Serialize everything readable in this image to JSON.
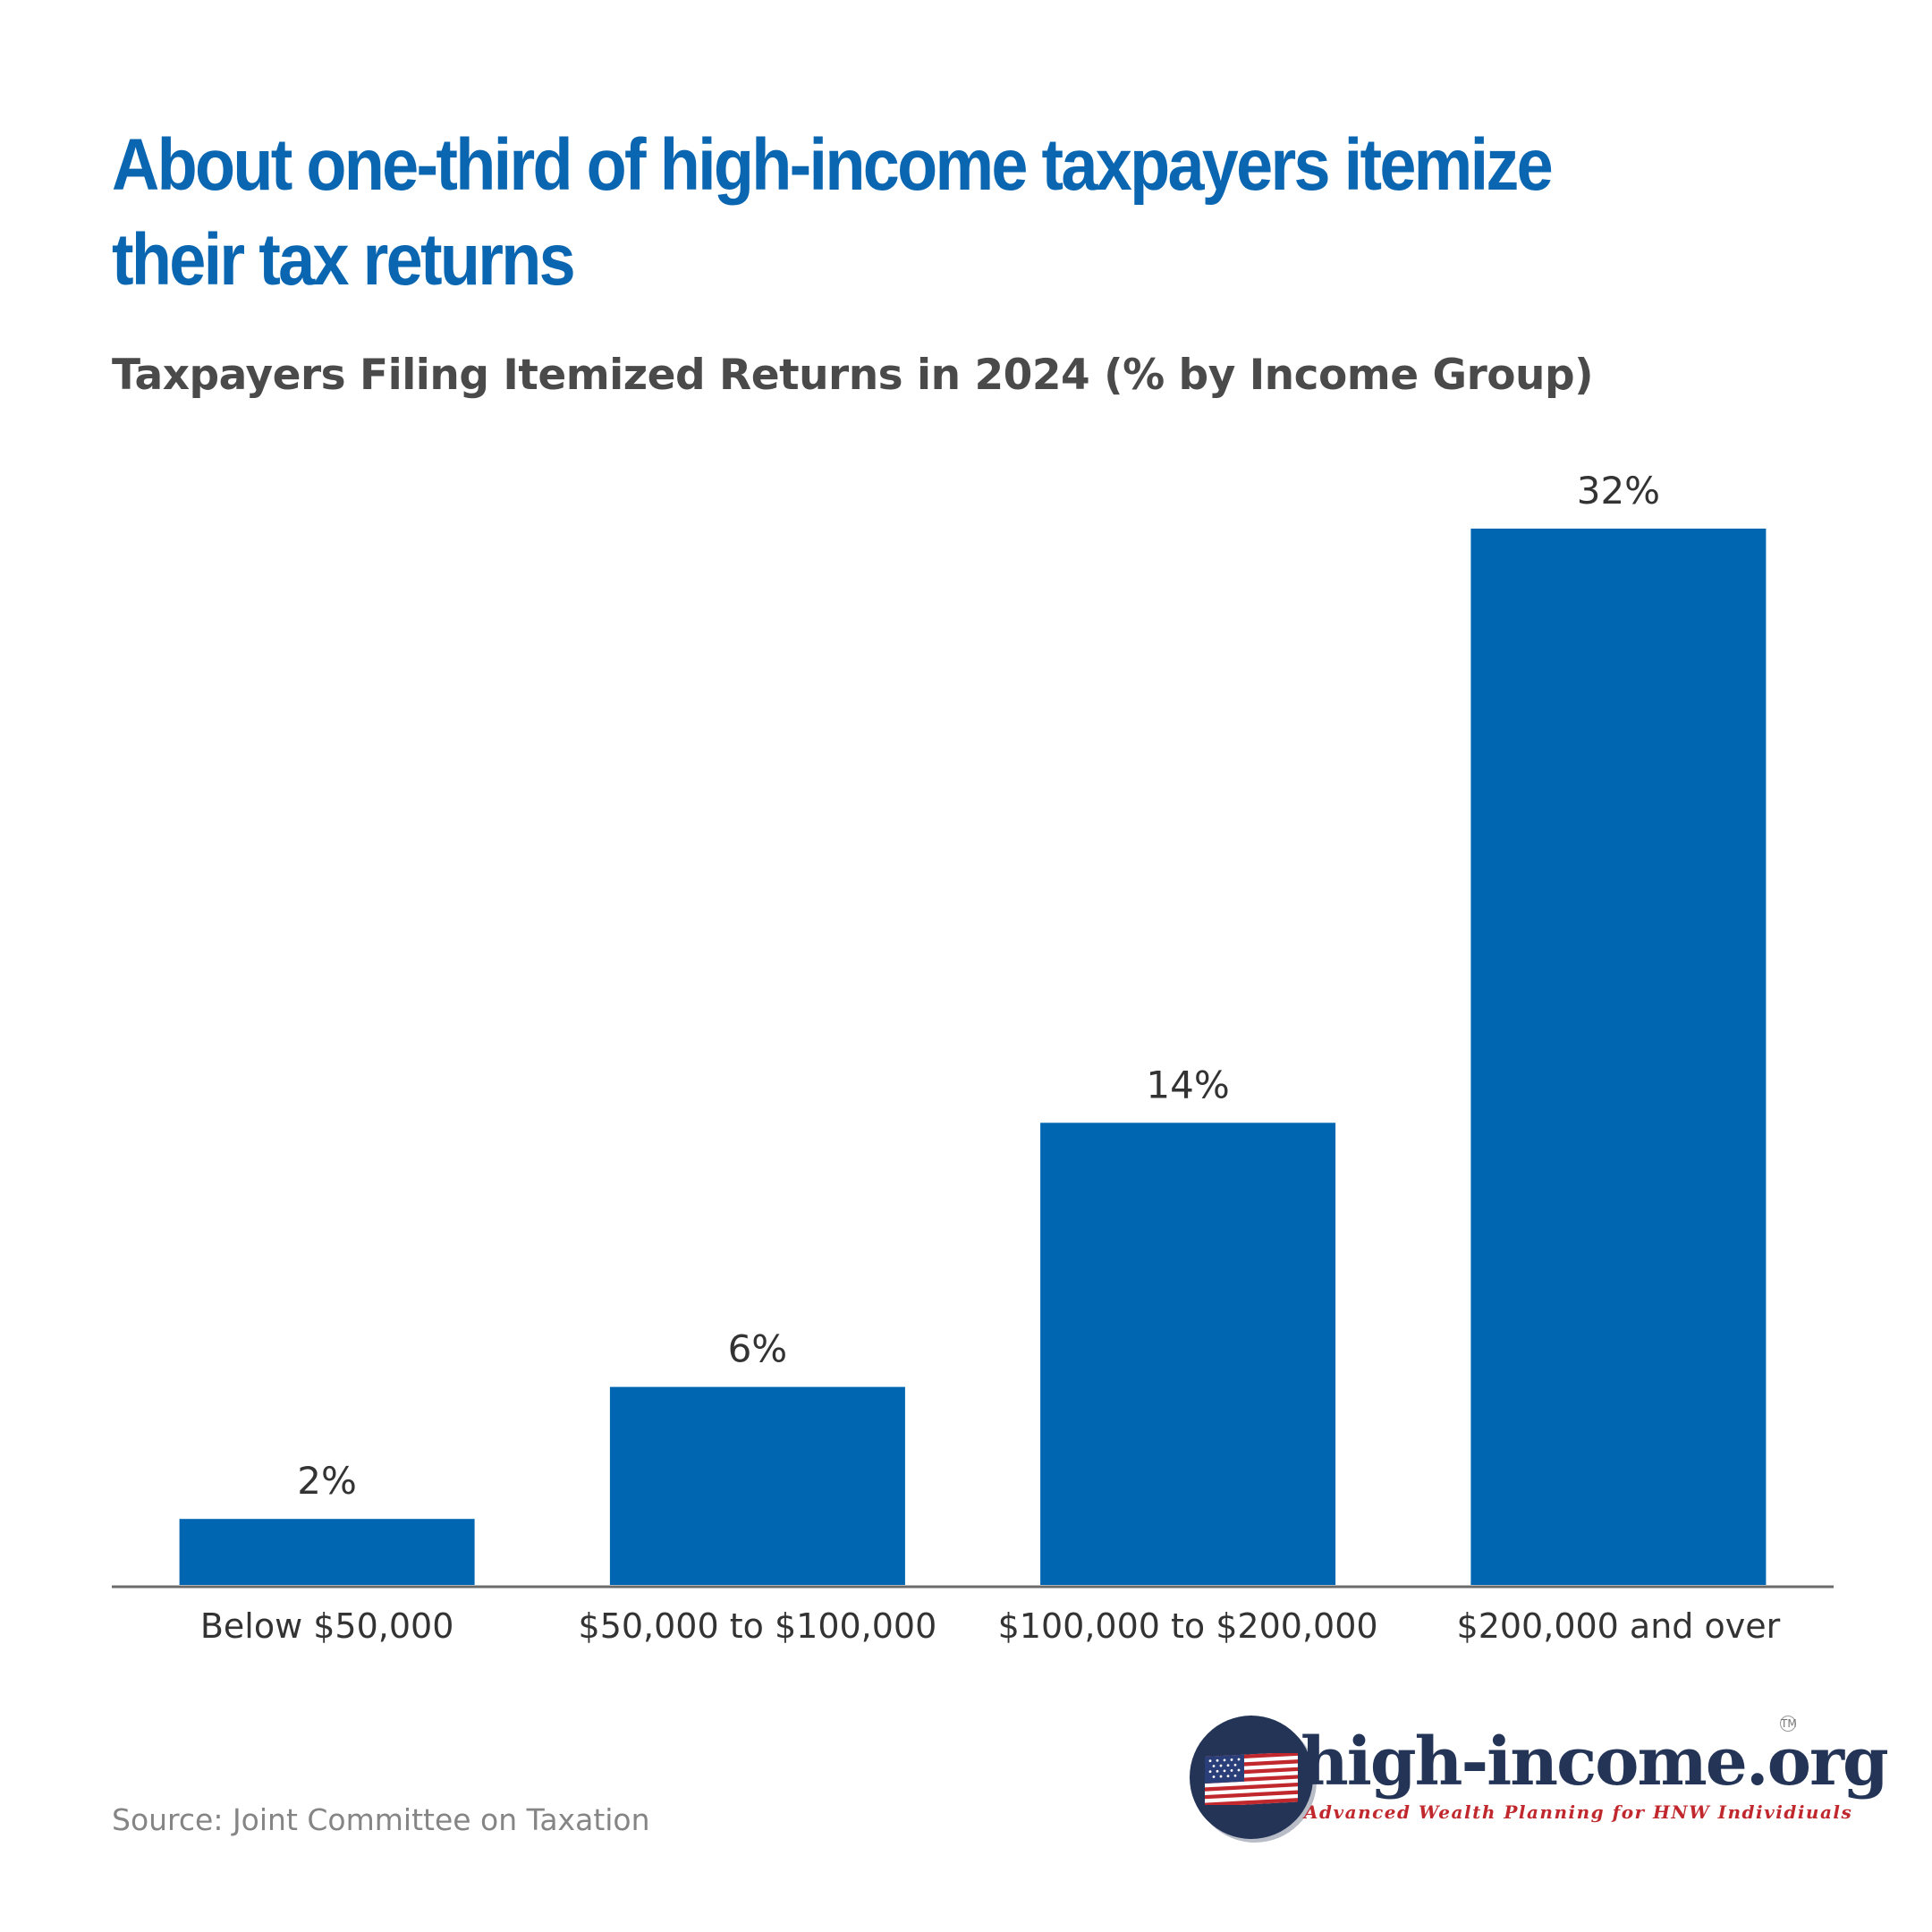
{
  "title": "About one-third of high-income taxpayers itemize their tax returns",
  "subtitle": "Taxpayers Filing Itemized Returns in 2024 (% by Income Group)",
  "source": "Source: Joint Committee on Taxation",
  "colors": {
    "bar": "#0066b1",
    "title": "#0b66b1",
    "axis": "#6b6b6b",
    "label": "#333333"
  },
  "logo": {
    "name": "high-income.org",
    "tagline": "Advanced Wealth Planning for HNW Individiuals",
    "tm": "TM",
    "icon": "us-flag-icon"
  },
  "chart_data": {
    "type": "bar",
    "title": "Taxpayers Filing Itemized Returns in 2024 (% by Income Group)",
    "categories": [
      "Below $50,000",
      "$50,000 to $100,000",
      "$100,000 to $200,000",
      "$200,000 and over"
    ],
    "values": [
      2,
      6,
      14,
      32
    ],
    "value_labels": [
      "2%",
      "6%",
      "14%",
      "32%"
    ],
    "unit": "%",
    "xlabel": "",
    "ylabel": "",
    "ylim": [
      0,
      32
    ],
    "grid": false,
    "legend": "none"
  }
}
